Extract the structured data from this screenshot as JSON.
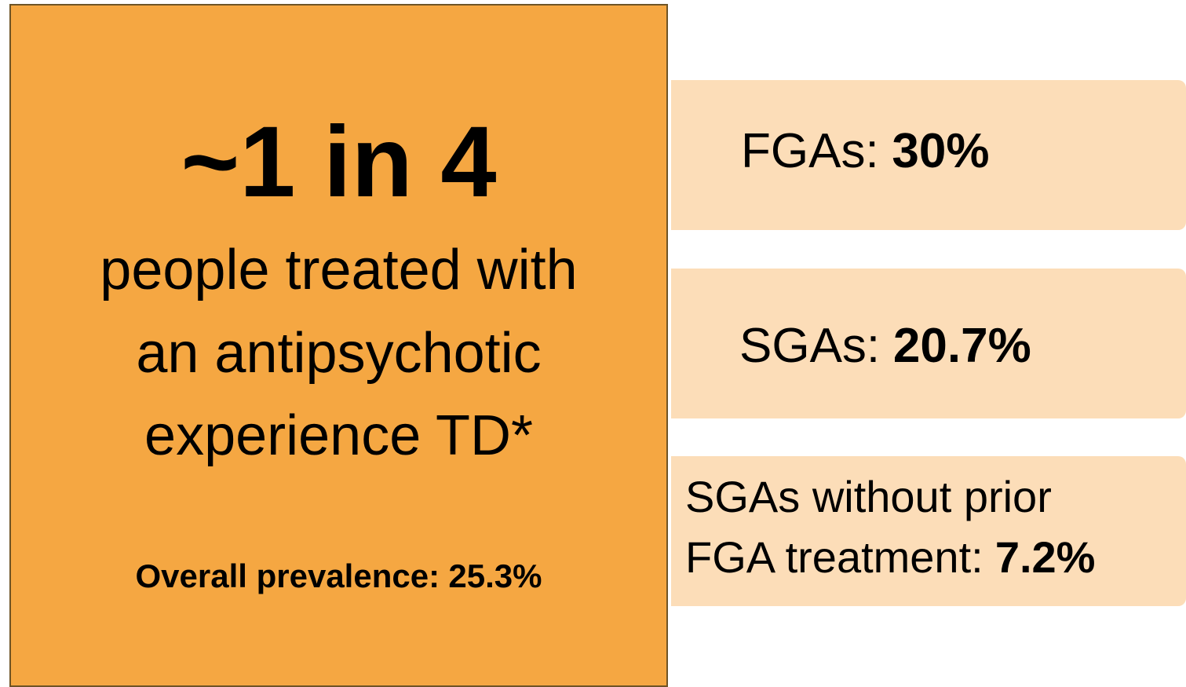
{
  "headline": "~1 in 4",
  "description": [
    "people treated with",
    "an antipsychotic",
    "experience TD*"
  ],
  "overall": {
    "label": "Overall prevalence:",
    "value": "25.3%"
  },
  "stats": [
    {
      "label": "FGAs:",
      "value": "30%"
    },
    {
      "label": "SGAs:",
      "value": "20.7%"
    },
    {
      "label_lines": [
        "SGAs without prior",
        "FGA treatment:"
      ],
      "value": "7.2%"
    }
  ]
}
